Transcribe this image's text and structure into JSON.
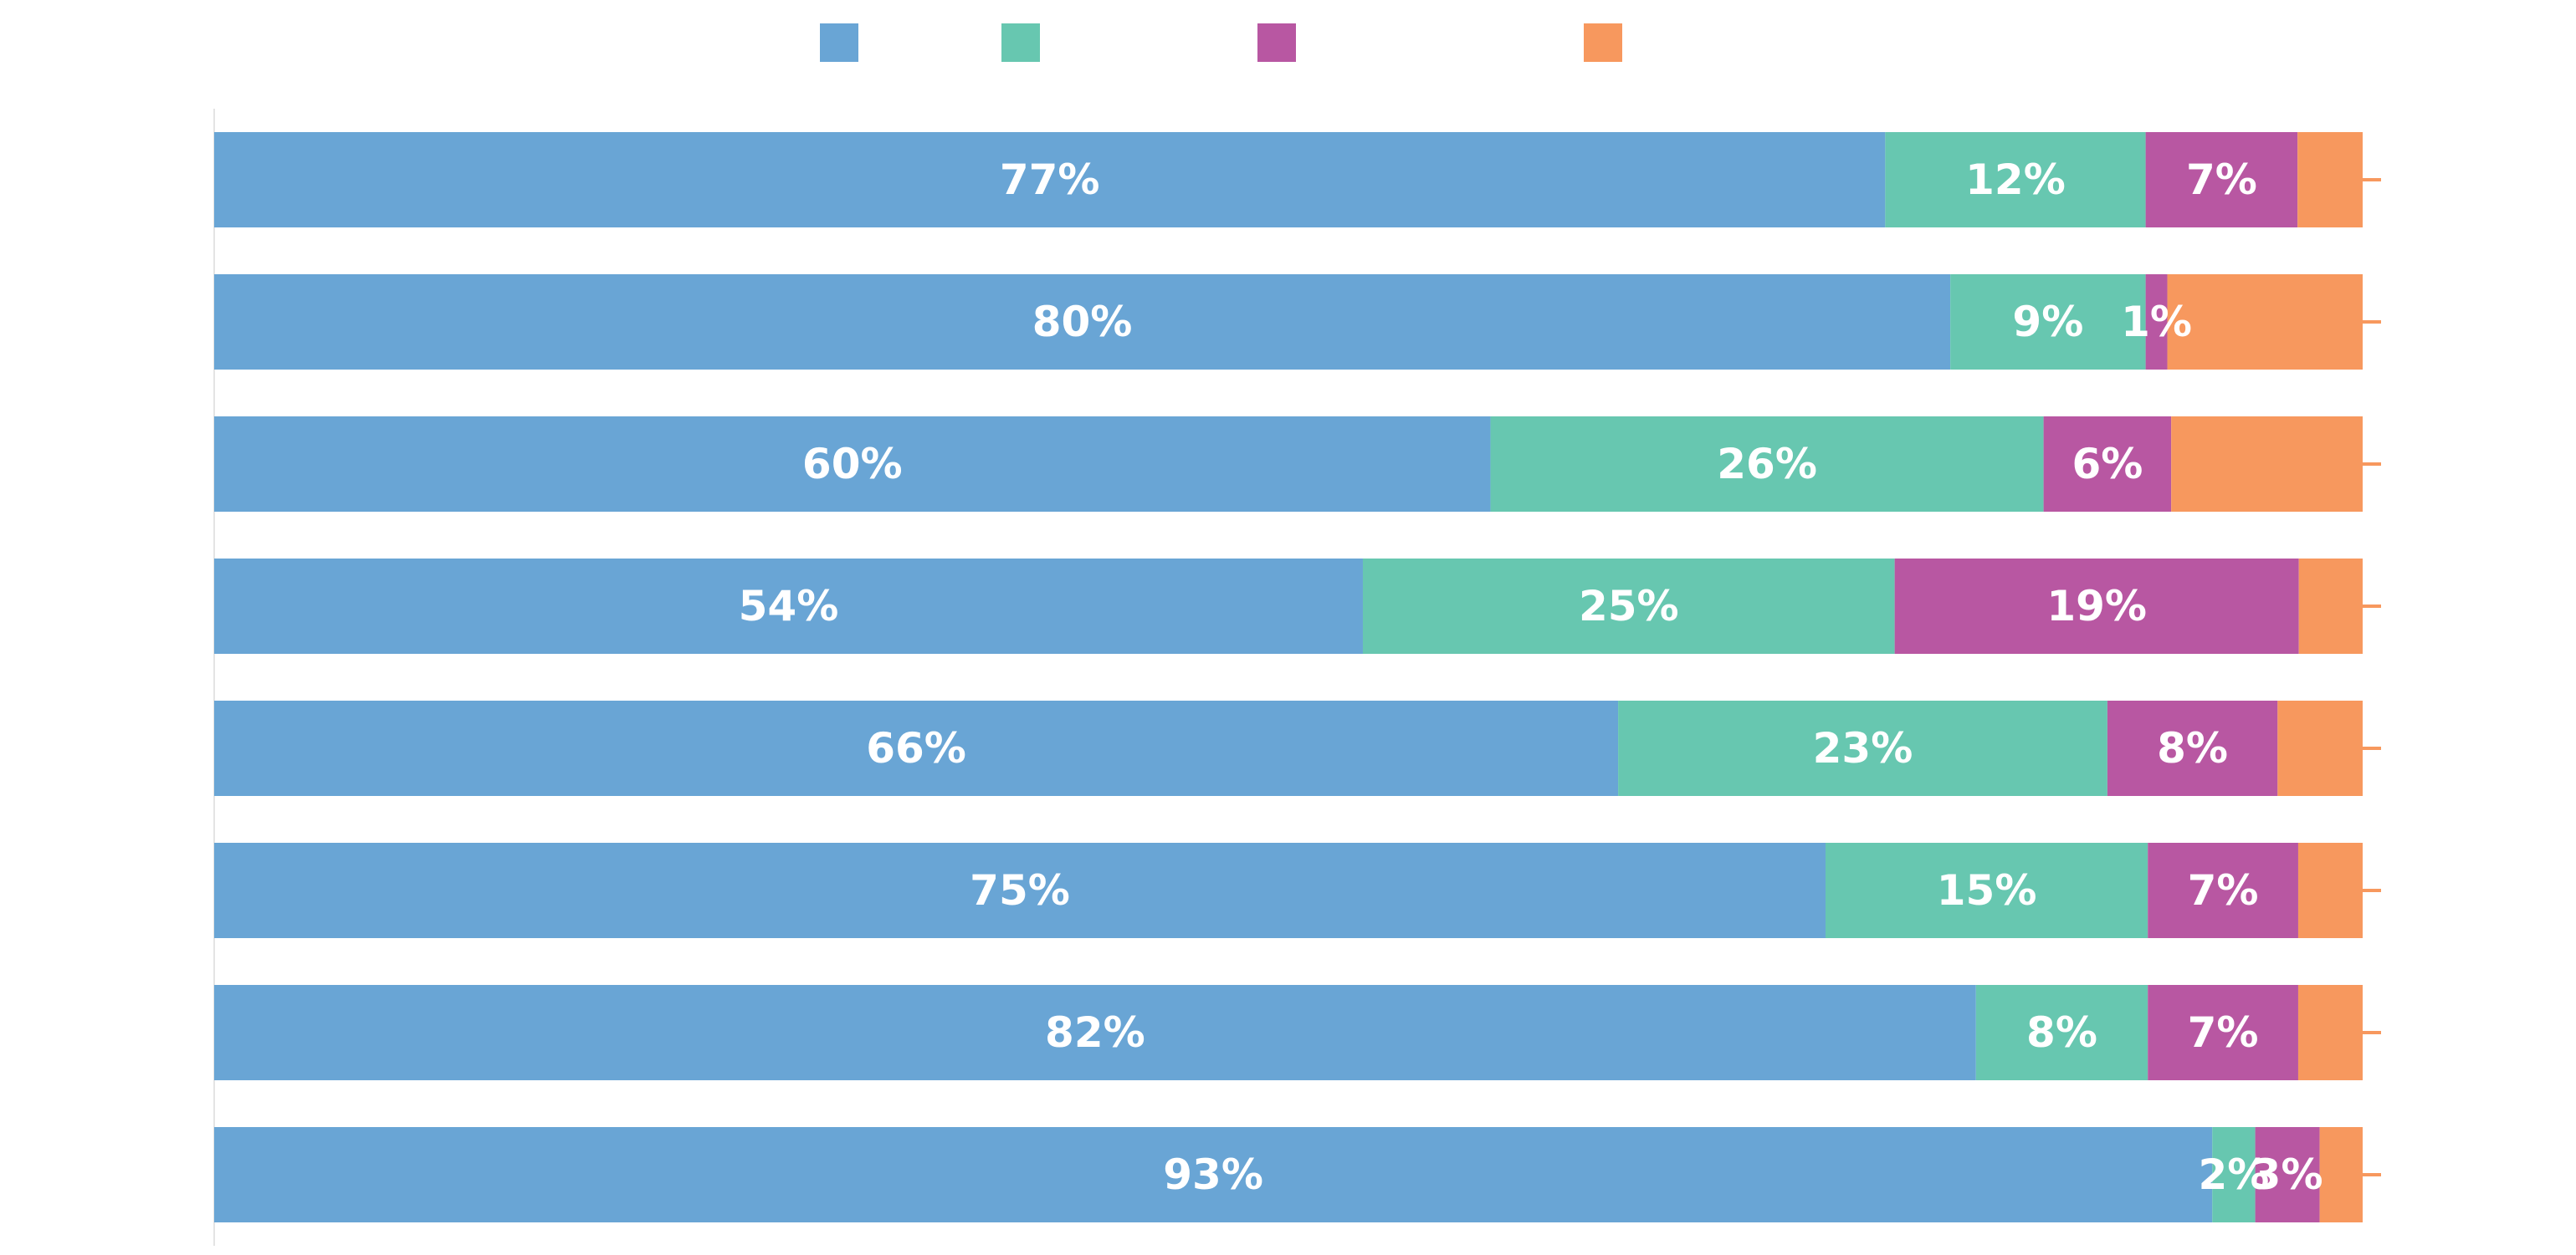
{
  "chart_data": {
    "type": "bar",
    "orientation": "horizontal",
    "stacked": true,
    "title": "",
    "xlabel": "",
    "ylabel": "",
    "xlim": [
      0,
      100
    ],
    "grid": false,
    "legend": {
      "position": "top"
    },
    "categories": [
      "",
      "",
      "",
      "",
      "",
      "",
      "",
      ""
    ],
    "series": [
      {
        "color": "#69a5d5",
        "values": [
          77,
          80,
          60,
          54,
          66,
          75,
          82,
          93
        ],
        "labels": [
          "77%",
          "80%",
          "60%",
          "54%",
          "66%",
          "75%",
          "82%",
          "93%"
        ]
      },
      {
        "color": "#67c7b0",
        "values": [
          12,
          9,
          26,
          25,
          23,
          15,
          8,
          2
        ],
        "labels": [
          "12%",
          "9%",
          "26%",
          "25%",
          "23%",
          "15%",
          "8%",
          "2%"
        ]
      },
      {
        "color": "#b857a2",
        "values": [
          7,
          1,
          6,
          19,
          8,
          7,
          7,
          3
        ],
        "labels": [
          "7%",
          "1%",
          "6%",
          "19%",
          "8%",
          "7%",
          "7%",
          "3%"
        ]
      },
      {
        "color": "#f7985e",
        "values": [
          3,
          9,
          9,
          3,
          4,
          3,
          3,
          2
        ],
        "labels": [
          "",
          "",
          "",
          "",
          "",
          "",
          "",
          ""
        ]
      }
    ]
  }
}
